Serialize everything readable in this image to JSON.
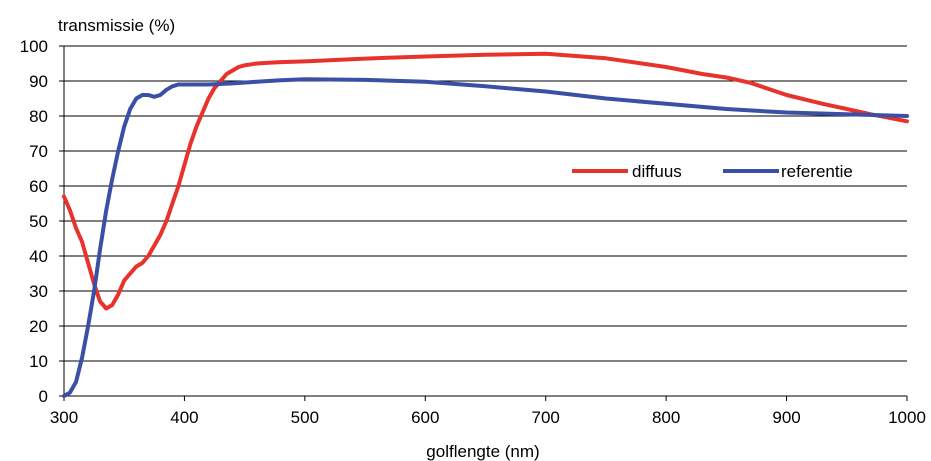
{
  "chart_data": {
    "type": "line",
    "title": "",
    "ylabel": "transmissie (%)",
    "xlabel": "golflengte (nm)",
    "xlim": [
      300,
      1000
    ],
    "ylim": [
      0,
      100
    ],
    "xticks": [
      300,
      400,
      500,
      600,
      700,
      800,
      900,
      1000
    ],
    "yticks": [
      0,
      10,
      20,
      30,
      40,
      50,
      60,
      70,
      80,
      90,
      100
    ],
    "grid": "horizontal",
    "legend_position": "center-right",
    "series": [
      {
        "name": "diffuus",
        "color": "#e8322c",
        "x": [
          300,
          305,
          310,
          315,
          320,
          325,
          330,
          335,
          340,
          345,
          350,
          355,
          360,
          365,
          370,
          375,
          380,
          385,
          390,
          395,
          400,
          405,
          410,
          415,
          420,
          425,
          430,
          435,
          440,
          445,
          450,
          460,
          470,
          480,
          500,
          550,
          600,
          650,
          700,
          750,
          800,
          830,
          850,
          870,
          900,
          930,
          950,
          970,
          1000
        ],
        "y": [
          57,
          53,
          48,
          44,
          38,
          32,
          27,
          25,
          26,
          29,
          33,
          35,
          37,
          38,
          40,
          43,
          46,
          50,
          55,
          60,
          66,
          72,
          77,
          81,
          85,
          88,
          90,
          92,
          93,
          94,
          94.5,
          95,
          95.2,
          95.4,
          95.6,
          96.4,
          97,
          97.5,
          97.8,
          96.5,
          94,
          92,
          91,
          89.5,
          86,
          83.5,
          82,
          80.5,
          78.5
        ]
      },
      {
        "name": "referentie",
        "color": "#3b4fa5",
        "x": [
          300,
          305,
          310,
          315,
          320,
          325,
          330,
          335,
          340,
          345,
          350,
          355,
          360,
          365,
          370,
          375,
          380,
          385,
          390,
          395,
          400,
          410,
          420,
          440,
          460,
          480,
          500,
          550,
          600,
          650,
          700,
          750,
          800,
          850,
          900,
          950,
          1000
        ],
        "y": [
          0,
          1,
          4,
          11,
          20,
          30,
          42,
          53,
          62,
          70,
          77,
          82,
          85,
          86,
          86,
          85.5,
          86,
          87.5,
          88.5,
          89,
          89,
          89,
          89,
          89.3,
          89.8,
          90.2,
          90.5,
          90.3,
          89.8,
          88.5,
          87,
          85,
          83.5,
          82,
          81,
          80.5,
          80
        ]
      }
    ]
  }
}
